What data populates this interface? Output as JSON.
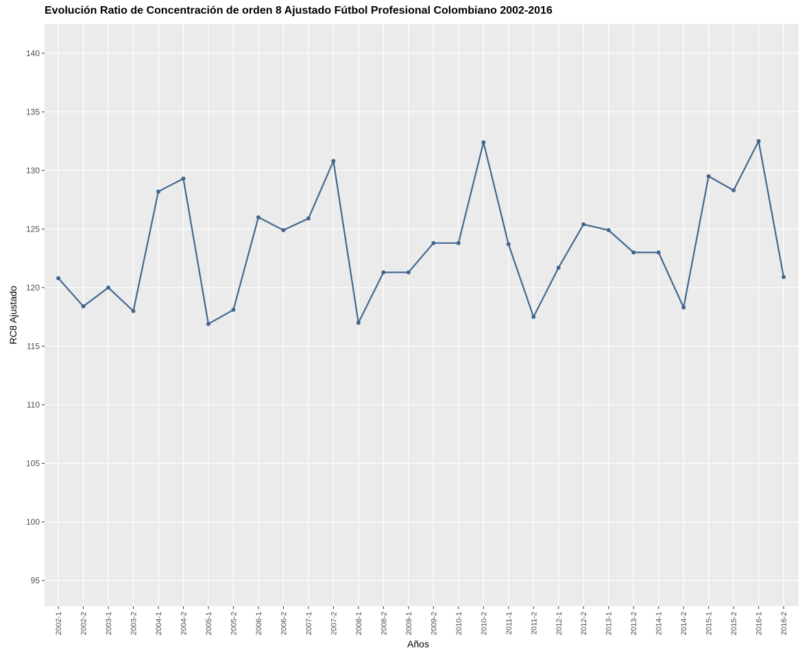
{
  "chart_data": {
    "type": "line",
    "title": "Evolución Ratio de Concentración de orden 8 Ajustado Fútbol Profesional Colombiano 2002-2016",
    "x_label": "Años",
    "y_label": "RC8 Ajustado",
    "categories": [
      "2002-1",
      "2002-2",
      "2003-1",
      "2003-2",
      "2004-1",
      "2004-2",
      "2005-1",
      "2005-2",
      "2006-1",
      "2006-2",
      "2007-1",
      "2007-2",
      "2008-1",
      "2008-2",
      "2009-1",
      "2009-2",
      "2010-1",
      "2010-2",
      "2011-1",
      "2011-2",
      "2012-1",
      "2012-2",
      "2013-1",
      "2013-2",
      "2014-1",
      "2014-2",
      "2015-1",
      "2015-2",
      "2016-1",
      "2016-2"
    ],
    "values": [
      120.8,
      118.4,
      120.0,
      118.0,
      128.2,
      129.3,
      116.9,
      118.1,
      126.0,
      124.9,
      125.9,
      130.8,
      117.0,
      121.3,
      121.3,
      123.8,
      123.8,
      132.4,
      123.7,
      117.5,
      121.7,
      125.4,
      124.9,
      123.0,
      123.0,
      118.3,
      129.5,
      128.3,
      132.5,
      120.9
    ],
    "color": "#41678f",
    "ylim": [
      92.8,
      142.5
    ],
    "yticks": [
      95,
      100,
      105,
      110,
      115,
      120,
      125,
      130,
      135,
      140
    ],
    "grid": true
  }
}
